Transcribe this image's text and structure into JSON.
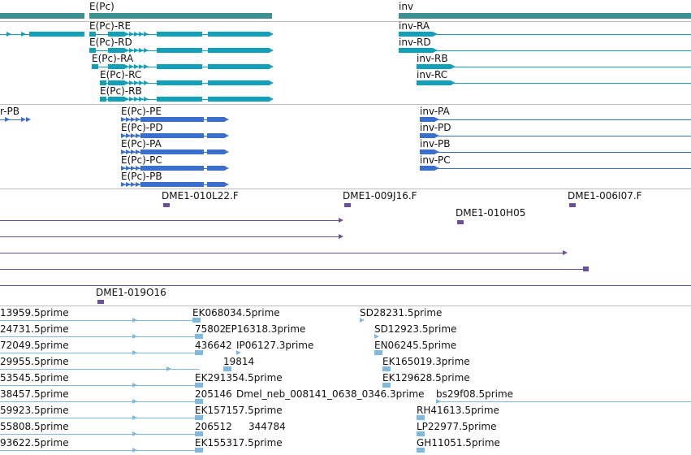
{
  "colors": {
    "gene_bar": "#3e8f8f",
    "transcript_teal": "#10a0b8",
    "transcript_blue": "#3a70cc",
    "clone_purple": "#6a4fa0",
    "est_lightblue": "#7fb8e0",
    "separator": "#bdbdbd"
  },
  "genes": [
    {
      "label": "E(Pc)"
    },
    {
      "label": "inv"
    }
  ],
  "transcripts": [
    "E(Pc)-RE",
    "E(Pc)-RD",
    "E(Pc)-RA",
    "E(Pc)-RC",
    "E(Pc)-RB",
    "inv-RA",
    "inv-RD",
    "inv-RB",
    "inv-RC"
  ],
  "cds": [
    "r-PB",
    "E(Pc)-PE",
    "E(Pc)-PD",
    "E(Pc)-PA",
    "E(Pc)-PC",
    "E(Pc)-PB",
    "inv-PA",
    "inv-PD",
    "inv-PB",
    "inv-PC"
  ],
  "clones": [
    "DME1-010L22.F",
    "DME1-009J16.F",
    "DME1-006I07.F",
    "DME1-010H05",
    "DME1-019O16"
  ],
  "ests": [
    "13959.5prime",
    "EK068034.5prime",
    "SD28231.5prime",
    "24731.5prime",
    "75802",
    "EP16318.3prime",
    "SD12923.5prime",
    "72049.5prime",
    "436642",
    "IP06127.3prime",
    "EN06245.5prime",
    "29955.5prime",
    "19814",
    "EK165019.3prime",
    "53545.5prime",
    "EK291354.5prime",
    "EK129628.5prime",
    "38457.5prime",
    "205146",
    "Dmel_neb_008141_0638_0346.3prime",
    "bs29f08.5prime",
    "59923.5prime",
    "EK157157.5prime",
    "RH41613.5prime",
    "55808.5prime",
    "206512",
    "344784",
    "LP22977.5prime",
    "93622.5prime",
    "EK155317.5prime",
    "GH11051.5prime"
  ]
}
